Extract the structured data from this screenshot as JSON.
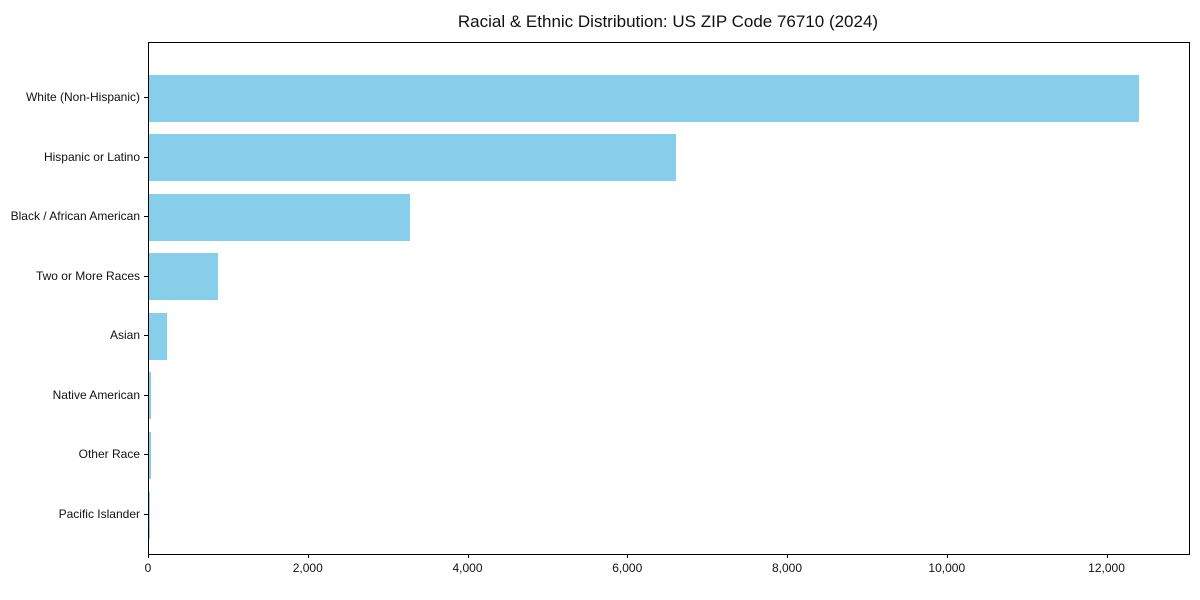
{
  "chart_data": {
    "type": "bar",
    "orientation": "horizontal",
    "title": "Racial & Ethnic Distribution: US ZIP Code 76710 (2024)",
    "categories": [
      "White (Non-Hispanic)",
      "Hispanic or Latino",
      "Black / African American",
      "Two or More Races",
      "Asian",
      "Native American",
      "Other Race",
      "Pacific Islander"
    ],
    "values": [
      12390,
      6600,
      3270,
      865,
      225,
      30,
      20,
      10
    ],
    "xlabel": "",
    "ylabel": "",
    "xlim": [
      0,
      13020
    ],
    "x_ticks": [
      0,
      2000,
      4000,
      6000,
      8000,
      10000,
      12000
    ],
    "x_tick_labels": [
      "0",
      "2,000",
      "4,000",
      "6,000",
      "8,000",
      "10,000",
      "12,000"
    ],
    "bar_color": "#87CEEB",
    "spine_color": "#000000",
    "grid": false,
    "legend": null
  }
}
